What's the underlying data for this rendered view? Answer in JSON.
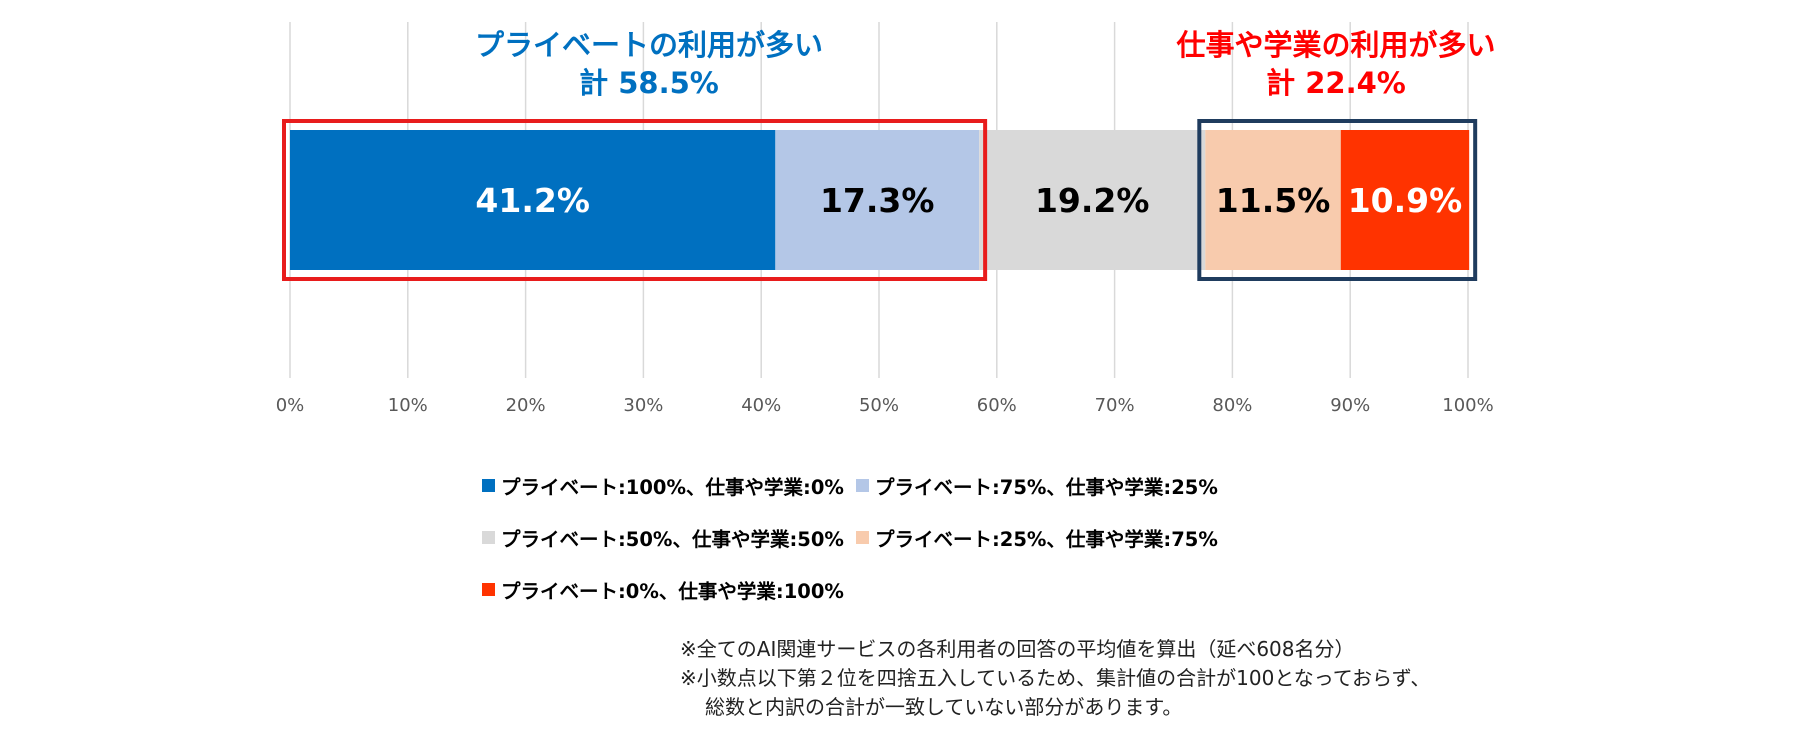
{
  "annotations": {
    "private_group": {
      "line1": "プライベートの利用が多い",
      "line2": "計 58.5%",
      "color": "#0070c0",
      "box_color": "#e81c1c"
    },
    "work_group": {
      "line1": "仕事や学業の利用が多い",
      "line2": "計 22.4%",
      "color": "#ff0000",
      "box_color": "#1f3c5e"
    }
  },
  "chart_data": {
    "type": "bar",
    "orientation": "horizontal-stacked-100",
    "categories": [
      ""
    ],
    "xlim": [
      0,
      100
    ],
    "x_ticks": [
      "0%",
      "10%",
      "20%",
      "30%",
      "40%",
      "50%",
      "60%",
      "70%",
      "80%",
      "90%",
      "100%"
    ],
    "grid": "vertical",
    "series": [
      {
        "name": "プライベート:100%、仕事や学業:0%",
        "values": [
          41.2
        ],
        "label": "41.2%",
        "color": "#0070c0",
        "label_color": "#ffffff"
      },
      {
        "name": "プライベート:75%、仕事や学業:25%",
        "values": [
          17.3
        ],
        "label": "17.3%",
        "color": "#b4c7e7",
        "label_color": "#000000"
      },
      {
        "name": "プライベート:50%、仕事や学業:50%",
        "values": [
          19.2
        ],
        "label": "19.2%",
        "color": "#d9d9d9",
        "label_color": "#000000"
      },
      {
        "name": "プライベート:25%、仕事や学業:75%",
        "values": [
          11.5
        ],
        "label": "11.5%",
        "color": "#f8cbad",
        "label_color": "#000000"
      },
      {
        "name": "プライベート:0%、仕事や学業:100%",
        "values": [
          10.9
        ],
        "label": "10.9%",
        "color": "#ff3300",
        "label_color": "#ffffff"
      }
    ],
    "legend_position": "bottom"
  },
  "notes": {
    "line1": "※全てのAI関連サービスの各利用者の回答の平均値を算出（延べ608名分）",
    "line2": "※小数点以下第２位を四捨五入しているため、集計値の合計が100となっておらず、",
    "line3": "総数と内訳の合計が一致していない部分があります。"
  }
}
